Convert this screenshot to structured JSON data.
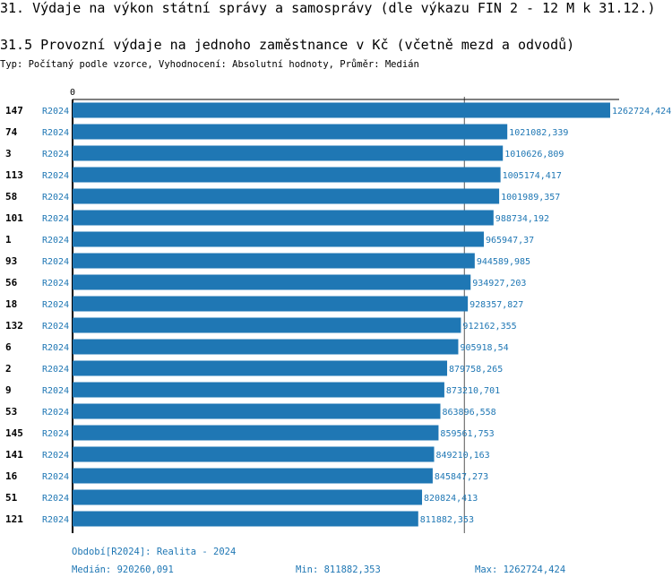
{
  "header": {
    "title": "31. Výdaje na výkon státní správy a samosprávy (dle výkazu FIN 2 - 12 M k 31.12.)",
    "subtitle": "31.5 Provozní výdaje na jednoho zaměstnance v Kč (včetně mezd a odvodů)",
    "info": "Typ: Počítaný podle vzorce, Vyhodnocení: Absolutní hodnoty, Průměr: Medián"
  },
  "chart_data": {
    "type": "bar",
    "orientation": "horizontal",
    "x_tick_labels": [
      "0"
    ],
    "median_line": 920260.091,
    "categories": [
      "147",
      "74",
      "3",
      "113",
      "58",
      "101",
      "1",
      "93",
      "56",
      "18",
      "132",
      "6",
      "2",
      "9",
      "53",
      "145",
      "141",
      "16",
      "51",
      "121"
    ],
    "series_label": "R2024",
    "values": [
      1262724.424,
      1021082.339,
      1010626.809,
      1005174.417,
      1001989.357,
      988734.192,
      965947.37,
      944589.985,
      934927.203,
      928357.827,
      912162.355,
      905918.54,
      879758.265,
      873210.701,
      863896.558,
      859561.753,
      849210.163,
      845847.273,
      820824.413,
      811882.353
    ],
    "value_labels": [
      "1262724,424",
      "1021082,339",
      "1010626,809",
      "1005174,417",
      "1001989,357",
      "988734,192",
      "965947,37",
      "944589,985",
      "934927,203",
      "928357,827",
      "912162,355",
      "905918,54",
      "879758,265",
      "873210,701",
      "863896,558",
      "859561,753",
      "849210,163",
      "845847,273",
      "820824,413",
      "811882,353"
    ],
    "bar_color": "#1f77b4"
  },
  "footer": {
    "period": "Období[R2024]: Realita - 2024",
    "median": "Medián: 920260,091",
    "min": "Min: 811882,353",
    "max": "Max: 1262724,424"
  }
}
